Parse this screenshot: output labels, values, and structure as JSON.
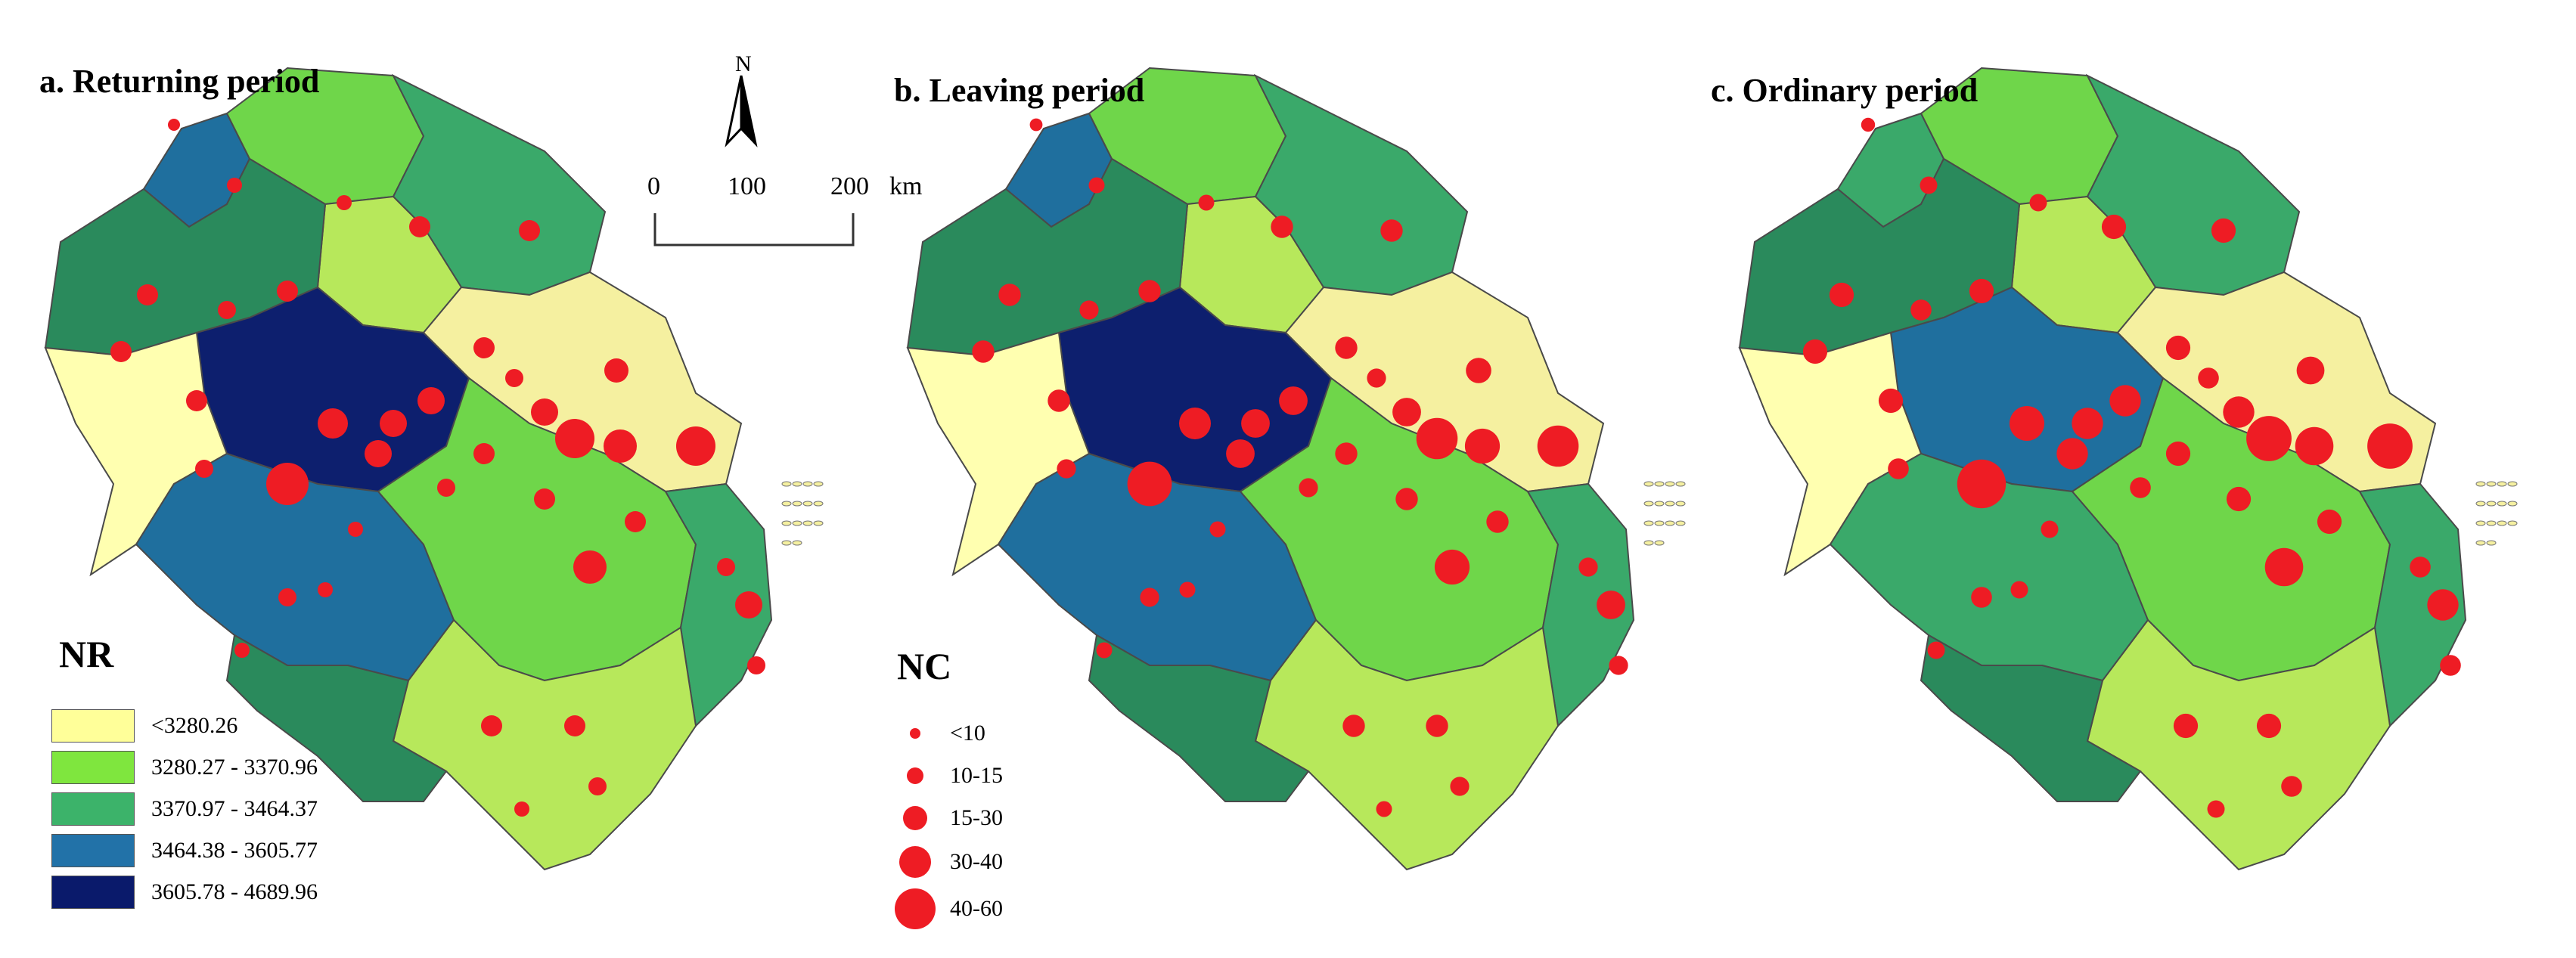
{
  "panels": [
    {
      "id": "a",
      "title": "a. Returning period",
      "fills": [
        "#1f6f9e",
        "#6fd64a",
        "#3aa96a",
        "#b7e85b",
        "#2a8a5c",
        "#0d1f6e",
        "#f5f0a0",
        "#ffffb0"
      ]
    },
    {
      "id": "b",
      "title": "b. Leaving period",
      "fills": [
        "#1f6f9e",
        "#6fd64a",
        "#3aa96a",
        "#b7e85b",
        "#2a8a5c",
        "#0d1f6e",
        "#f5f0a0",
        "#ffffb0"
      ]
    },
    {
      "id": "c",
      "title": "c. Ordinary period",
      "fills": [
        "#3aa96a",
        "#6fd64a",
        "#3aa96a",
        "#b7e85b",
        "#2a8a5c",
        "#1f6f9e",
        "#f5f0a0",
        "#ffffb0"
      ]
    }
  ],
  "north_arrow": {
    "label": "N"
  },
  "scale_bar": {
    "labels": [
      "0",
      "100",
      "200"
    ],
    "unit": "km"
  },
  "nr_legend": {
    "title": "NR",
    "classes": [
      {
        "label": "<3280.26",
        "color": "#ffff99"
      },
      {
        "label": "3280.27 - 3370.96",
        "color": "#7fe63e"
      },
      {
        "label": "3370.97 - 3464.37",
        "color": "#3cb36a"
      },
      {
        "label": "3464.38 - 3605.77",
        "color": "#2272a8"
      },
      {
        "label": "3605.78 - 4689.96",
        "color": "#0a1a6b"
      }
    ]
  },
  "nc_legend": {
    "title": "NC",
    "classes": [
      {
        "label": "<10",
        "size": 1
      },
      {
        "label": "10-15",
        "size": 2
      },
      {
        "label": "15-30",
        "size": 3
      },
      {
        "label": "30-40",
        "size": 4
      },
      {
        "label": "40-60",
        "size": 5
      }
    ],
    "color": "#ee1c24"
  }
}
